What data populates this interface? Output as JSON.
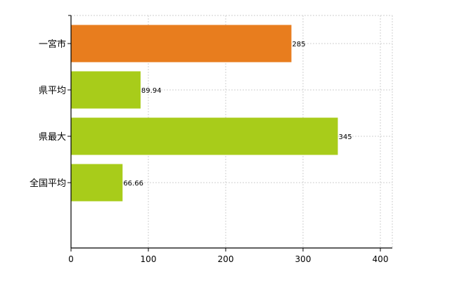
{
  "chart_data": {
    "type": "bar",
    "orientation": "horizontal",
    "categories": [
      "一宮市",
      "県平均",
      "県最大",
      "全国平均"
    ],
    "values": [
      285,
      89.94,
      345,
      66.66
    ],
    "value_labels": [
      "285",
      "89.94",
      "345",
      "66.66"
    ],
    "bar_colors": [
      "#e87d1e",
      "#a8cc1a",
      "#a8cc1a",
      "#a8cc1a"
    ],
    "xlim": [
      0,
      400
    ],
    "xticks": [
      0,
      100,
      200,
      300,
      400
    ],
    "xtick_labels": [
      "0",
      "100",
      "200",
      "300",
      "400"
    ],
    "grid": true,
    "legend": false
  }
}
